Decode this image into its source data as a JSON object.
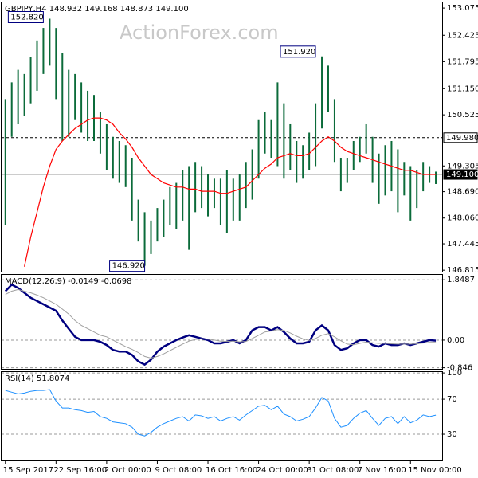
{
  "chart_data": [
    {
      "type": "hilo",
      "title": "GBPJPY,H4  148.932 149.168 148.873 149.100",
      "watermark": "ActionForex.com",
      "color": "#0b6b3a",
      "line_color": "#ff0000",
      "xlim": [
        -0.6,
        69
      ],
      "ylim": [
        146.78,
        153.21
      ],
      "yticks": [
        153.075,
        152.425,
        151.795,
        {
          "value": 151.15,
          "label": "151.150"
        },
        150.525,
        149.305,
        {
          "value": 148.69,
          "label": "148.690"
        },
        {
          "value": 148.06,
          "label": "148.060"
        },
        147.445,
        146.815
      ],
      "high": [
        150.9,
        151.3,
        151.6,
        151.5,
        151.9,
        152.3,
        152.6,
        152.82,
        152.6,
        152.0,
        151.6,
        151.5,
        151.3,
        151.1,
        151.0,
        150.6,
        150.3,
        150.0,
        149.9,
        149.8,
        149.5,
        148.5,
        148.2,
        148.0,
        148.3,
        148.5,
        148.8,
        148.9,
        149.2,
        149.3,
        149.4,
        149.3,
        149.1,
        149.0,
        149.0,
        149.2,
        149.0,
        149.1,
        149.4,
        149.7,
        150.4,
        150.6,
        150.4,
        151.3,
        150.8,
        150.3,
        149.9,
        149.8,
        150.1,
        150.8,
        151.92,
        151.7,
        150.9,
        149.5,
        149.5,
        149.9,
        150.0,
        150.3,
        150.0,
        149.6,
        149.8,
        149.9,
        149.7,
        149.4,
        149.3,
        149.2,
        149.4,
        149.3,
        149.168
      ],
      "low": [
        147.9,
        150.0,
        150.3,
        150.5,
        150.8,
        151.1,
        151.5,
        151.7,
        150.9,
        149.9,
        150.0,
        150.4,
        150.1,
        149.9,
        149.9,
        149.6,
        149.2,
        149.0,
        148.9,
        148.8,
        148.0,
        147.5,
        146.92,
        147.2,
        147.5,
        147.6,
        147.9,
        147.8,
        148.0,
        147.3,
        148.2,
        148.3,
        148.1,
        148.3,
        147.9,
        147.7,
        148.0,
        148.0,
        148.3,
        148.5,
        149.0,
        149.6,
        149.5,
        149.3,
        149.0,
        149.2,
        148.9,
        149.0,
        149.2,
        149.3,
        150.2,
        150.6,
        149.4,
        148.7,
        148.9,
        149.2,
        149.4,
        149.6,
        148.9,
        148.4,
        148.6,
        148.7,
        148.2,
        148.6,
        148.0,
        148.3,
        148.7,
        148.9,
        148.873
      ],
      "line_values": [
        null,
        null,
        null,
        146.9,
        147.6,
        148.2,
        148.8,
        149.3,
        149.7,
        149.9,
        150.05,
        150.2,
        150.3,
        150.4,
        150.45,
        150.45,
        150.4,
        150.3,
        150.1,
        149.95,
        149.75,
        149.5,
        149.3,
        149.1,
        149.0,
        148.9,
        148.85,
        148.8,
        148.8,
        148.75,
        148.75,
        148.7,
        148.7,
        148.7,
        148.65,
        148.65,
        148.7,
        148.75,
        148.8,
        148.95,
        149.1,
        149.25,
        149.35,
        149.5,
        149.55,
        149.6,
        149.55,
        149.55,
        149.6,
        149.75,
        149.9,
        150.0,
        149.9,
        149.75,
        149.65,
        149.6,
        149.55,
        149.5,
        149.45,
        149.4,
        149.35,
        149.3,
        149.25,
        149.2,
        149.2,
        149.15,
        149.1,
        149.1,
        149.1
      ],
      "annotations": [
        {
          "text": "152.820",
          "x": 7,
          "y": 152.82
        },
        {
          "text": "151.920",
          "x": 50,
          "y": 151.92
        },
        {
          "text": "146.920",
          "x": 22,
          "y": 146.92
        }
      ],
      "level_lines": [
        {
          "value": 149.98,
          "label": "149.980"
        },
        {
          "value": 149.1,
          "label": "149.100"
        }
      ]
    },
    {
      "type": "line",
      "title": "MACD(12,26,9) -0.0149 -0.0698",
      "xlim": [
        -0.6,
        69
      ],
      "ylim": [
        -0.88,
        2.0
      ],
      "yticks": [
        1.8487,
        {
          "value": 0,
          "label": "0.00"
        },
        -0.846
      ],
      "series": [
        {
          "color": "#000080",
          "values": [
            1.5,
            1.7,
            1.6,
            1.45,
            1.3,
            1.2,
            1.1,
            1.0,
            0.9,
            0.6,
            0.35,
            0.1,
            0.0,
            0.0,
            0.0,
            -0.05,
            -0.15,
            -0.3,
            -0.35,
            -0.35,
            -0.45,
            -0.65,
            -0.75,
            -0.6,
            -0.35,
            -0.2,
            -0.1,
            0.0,
            0.08,
            0.15,
            0.1,
            0.05,
            0.0,
            -0.1,
            -0.1,
            -0.05,
            0.0,
            -0.1,
            0.0,
            0.3,
            0.4,
            0.4,
            0.3,
            0.4,
            0.25,
            0.05,
            -0.1,
            -0.1,
            -0.05,
            0.3,
            0.45,
            0.3,
            -0.15,
            -0.3,
            -0.25,
            -0.1,
            0.0,
            0.0,
            -0.15,
            -0.2,
            -0.1,
            -0.15,
            -0.15,
            -0.1,
            -0.15,
            -0.1,
            -0.05,
            0.0,
            -0.0149
          ]
        },
        {
          "color": "#a0a0a0",
          "values": [
            1.4,
            1.5,
            1.55,
            1.5,
            1.45,
            1.38,
            1.3,
            1.2,
            1.1,
            0.95,
            0.8,
            0.6,
            0.45,
            0.35,
            0.25,
            0.15,
            0.1,
            0.0,
            -0.1,
            -0.2,
            -0.28,
            -0.38,
            -0.5,
            -0.55,
            -0.5,
            -0.42,
            -0.32,
            -0.22,
            -0.12,
            -0.03,
            0.02,
            0.04,
            0.03,
            0.0,
            -0.03,
            -0.04,
            -0.03,
            -0.05,
            -0.04,
            0.05,
            0.15,
            0.25,
            0.28,
            0.32,
            0.3,
            0.22,
            0.12,
            0.04,
            -0.01,
            0.05,
            0.15,
            0.2,
            0.1,
            -0.02,
            -0.12,
            -0.14,
            -0.1,
            -0.06,
            -0.08,
            -0.1,
            -0.1,
            -0.11,
            -0.12,
            -0.12,
            -0.12,
            -0.11,
            -0.09,
            -0.07,
            -0.0698
          ]
        }
      ]
    },
    {
      "type": "line",
      "title": "RSI(14) 51.8074",
      "xlim": [
        -0.6,
        69
      ],
      "ylim": [
        0,
        101
      ],
      "yticks": [
        100,
        70,
        30
      ],
      "xticks": [
        {
          "value": 0,
          "label": "15 Sep 2017"
        },
        {
          "value": 8,
          "label": "22 Sep 16:00"
        },
        {
          "value": 16,
          "label": "2 Oct 00:00"
        },
        {
          "value": 24,
          "label": "9 Oct 08:00"
        },
        {
          "value": 32,
          "label": "16 Oct 16:00"
        },
        {
          "value": 40,
          "label": "24 Oct 00:00"
        },
        {
          "value": 48,
          "label": "31 Oct 08:00"
        },
        {
          "value": 56,
          "label": "7 Nov 16:00"
        },
        {
          "value": 64,
          "label": "15 Nov 00:00"
        }
      ],
      "series": [
        {
          "color": "#1e90ff",
          "values": [
            80,
            78,
            76,
            77,
            79,
            80,
            80,
            81,
            68,
            60,
            60,
            58,
            57,
            55,
            56,
            50,
            48,
            44,
            43,
            42,
            38,
            30,
            28,
            32,
            38,
            42,
            45,
            48,
            50,
            45,
            52,
            51,
            48,
            50,
            45,
            48,
            50,
            46,
            52,
            57,
            62,
            63,
            58,
            62,
            53,
            50,
            45,
            47,
            50,
            60,
            72,
            68,
            48,
            38,
            40,
            48,
            54,
            57,
            48,
            40,
            48,
            50,
            42,
            50,
            43,
            46,
            52,
            50,
            51.8074
          ]
        }
      ]
    }
  ]
}
